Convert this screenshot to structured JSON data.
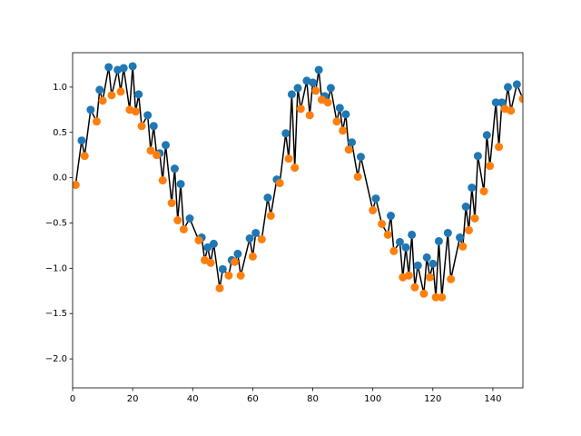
{
  "chart_data": {
    "type": "line",
    "xlim": [
      0,
      150
    ],
    "ylim": [
      -2.32,
      1.38
    ],
    "xticks": [
      0,
      20,
      40,
      60,
      80,
      100,
      120,
      140
    ],
    "yticks": [
      {
        "value": -2.0,
        "label": "−2.0"
      },
      {
        "value": -1.5,
        "label": "−1.5"
      },
      {
        "value": -1.0,
        "label": "−1.0"
      },
      {
        "value": -0.5,
        "label": "−0.5"
      },
      {
        "value": 0.0,
        "label": "0.0"
      },
      {
        "value": 0.5,
        "label": "0.5"
      },
      {
        "value": 1.0,
        "label": "1.0"
      }
    ],
    "grid": false,
    "series": [
      {
        "color": "#000000",
        "linestyle": "solid",
        "marker": "none",
        "x": [
          0,
          1,
          3,
          4,
          6,
          8,
          9,
          10,
          12,
          13,
          15,
          16,
          17,
          19,
          20,
          21,
          22,
          23,
          25,
          26,
          27,
          28,
          29,
          30,
          31,
          33,
          34,
          35,
          36,
          37,
          39,
          42,
          43,
          44,
          45,
          46,
          47,
          49,
          50,
          52,
          53,
          54,
          55,
          56,
          59,
          60,
          61,
          63,
          65,
          66,
          68,
          69,
          71,
          72,
          73,
          74,
          75,
          76,
          78,
          79,
          80,
          81,
          82,
          83,
          84,
          85,
          86,
          88,
          89,
          90,
          91,
          92,
          93,
          95,
          96,
          100,
          101,
          103,
          105,
          106,
          107,
          109,
          110,
          111,
          112,
          113,
          114,
          115,
          117,
          118,
          119,
          120,
          121,
          122,
          123,
          125,
          126,
          129,
          130,
          131,
          132,
          133,
          134,
          135,
          137,
          138,
          139,
          141,
          142,
          143,
          144,
          145,
          146,
          148,
          150
        ],
        "values": [
          -0.1,
          -0.08,
          0.41,
          0.24,
          0.75,
          0.62,
          0.97,
          0.85,
          1.22,
          0.91,
          1.19,
          0.95,
          1.21,
          0.75,
          1.23,
          0.73,
          0.92,
          0.57,
          0.69,
          0.3,
          0.57,
          0.25,
          0.27,
          -0.03,
          0.36,
          -0.28,
          0.1,
          -0.47,
          -0.07,
          -0.57,
          -0.45,
          -0.69,
          -0.66,
          -0.91,
          -0.77,
          -0.94,
          -0.73,
          -1.22,
          -1.01,
          -1.08,
          -0.91,
          -0.93,
          -0.84,
          -1.08,
          -0.67,
          -0.87,
          -0.61,
          -0.68,
          -0.22,
          -0.42,
          -0.02,
          -0.06,
          0.49,
          0.21,
          0.92,
          0.11,
          0.99,
          0.76,
          1.07,
          0.69,
          1.05,
          0.96,
          1.19,
          0.86,
          0.9,
          0.83,
          0.99,
          0.62,
          0.77,
          0.52,
          0.7,
          0.31,
          0.39,
          0.01,
          0.23,
          -0.36,
          -0.23,
          -0.51,
          -0.63,
          -0.42,
          -0.81,
          -0.71,
          -1.1,
          -0.77,
          -1.08,
          -0.63,
          -1.21,
          -0.97,
          -1.28,
          -0.88,
          -1.1,
          -0.95,
          -1.32,
          -0.7,
          -1.32,
          -0.61,
          -1.12,
          -0.66,
          -0.76,
          -0.32,
          -0.58,
          -0.11,
          -0.45,
          0.24,
          -0.15,
          0.47,
          0.13,
          0.83,
          0.34,
          0.83,
          0.76,
          1.0,
          0.74,
          1.03,
          0.87
        ]
      },
      {
        "color": "#1f77b4",
        "linestyle": "none",
        "marker": "o",
        "x": [
          3,
          6,
          9,
          12,
          15,
          17,
          20,
          22,
          25,
          27,
          29,
          31,
          34,
          36,
          39,
          43,
          45,
          47,
          50,
          53,
          55,
          59,
          61,
          65,
          68,
          71,
          73,
          75,
          78,
          80,
          82,
          84,
          86,
          89,
          91,
          93,
          96,
          101,
          106,
          109,
          111,
          113,
          115,
          118,
          120,
          122,
          125,
          129,
          131,
          133,
          135,
          138,
          141,
          143,
          145,
          148
        ],
        "values": [
          0.41,
          0.75,
          0.97,
          1.22,
          1.19,
          1.21,
          1.23,
          0.92,
          0.69,
          0.57,
          0.27,
          0.36,
          0.1,
          -0.07,
          -0.45,
          -0.66,
          -0.77,
          -0.73,
          -1.01,
          -0.91,
          -0.84,
          -0.67,
          -0.61,
          -0.22,
          -0.02,
          0.49,
          0.92,
          0.99,
          1.07,
          1.05,
          1.19,
          0.9,
          0.99,
          0.77,
          0.7,
          0.39,
          0.23,
          -0.23,
          -0.42,
          -0.71,
          -0.77,
          -0.63,
          -0.97,
          -0.88,
          -0.95,
          -0.7,
          -0.61,
          -0.66,
          -0.32,
          -0.11,
          0.24,
          0.47,
          0.83,
          0.83,
          1.0,
          1.03
        ]
      },
      {
        "color": "#ff7f0e",
        "linestyle": "none",
        "marker": "o",
        "x": [
          1,
          4,
          8,
          10,
          13,
          16,
          19,
          21,
          23,
          26,
          28,
          30,
          33,
          35,
          37,
          42,
          44,
          46,
          49,
          52,
          54,
          56,
          60,
          63,
          66,
          69,
          72,
          74,
          76,
          79,
          81,
          83,
          85,
          88,
          90,
          92,
          95,
          100,
          103,
          105,
          107,
          110,
          112,
          114,
          117,
          119,
          121,
          123,
          126,
          130,
          132,
          134,
          137,
          139,
          142,
          144,
          146,
          150
        ],
        "values": [
          -0.08,
          0.24,
          0.62,
          0.85,
          0.91,
          0.95,
          0.75,
          0.73,
          0.57,
          0.3,
          0.25,
          -0.03,
          -0.28,
          -0.47,
          -0.57,
          -0.69,
          -0.91,
          -0.94,
          -1.22,
          -1.08,
          -0.93,
          -1.08,
          -0.87,
          -0.68,
          -0.42,
          -0.06,
          0.21,
          0.11,
          0.76,
          0.69,
          0.96,
          0.86,
          0.83,
          0.62,
          0.52,
          0.31,
          0.01,
          -0.36,
          -0.51,
          -0.63,
          -0.81,
          -1.1,
          -1.08,
          -1.21,
          -1.28,
          -1.1,
          -1.32,
          -1.32,
          -1.12,
          -0.76,
          -0.58,
          -0.45,
          -0.15,
          0.13,
          0.34,
          0.76,
          0.74,
          0.87
        ]
      }
    ]
  }
}
